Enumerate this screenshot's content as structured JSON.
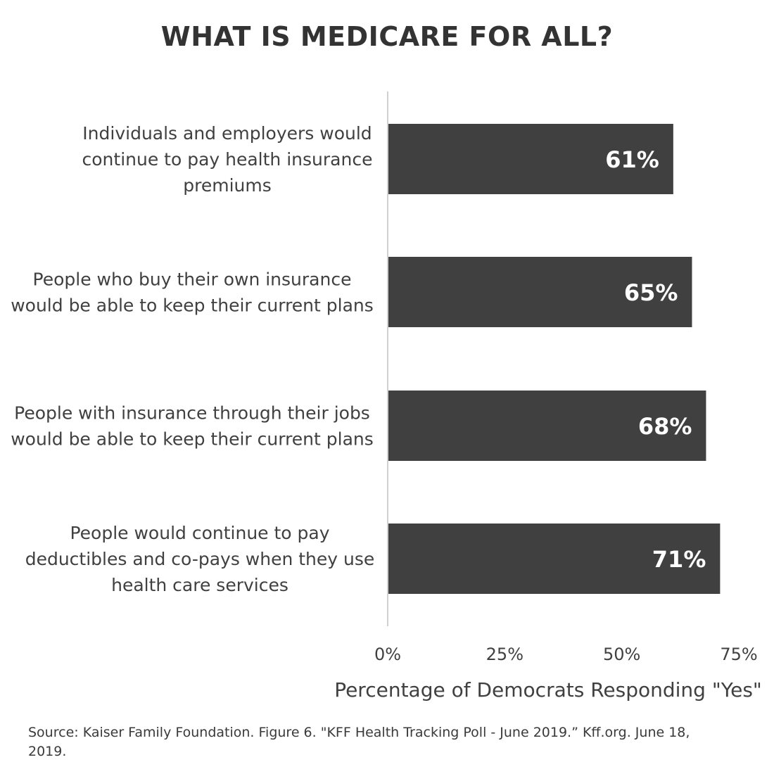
{
  "title": "WHAT IS MEDICARE FOR ALL?",
  "source": "Source: Kaiser Family Foundation. Figure 6. \"KFF Health Tracking Poll - June 2019.” Kff.org. June 18, 2019.",
  "chart_data": {
    "type": "bar",
    "orientation": "horizontal",
    "title": "WHAT IS MEDICARE FOR ALL?",
    "categories": [
      "Individuals and employers would continue to pay health insurance premiums",
      "People who buy their own insurance would be able to keep their current plans",
      "People with insurance through their jobs would be able to keep their current plans",
      "People would continue to pay deductibles and co-pays when they use health care services"
    ],
    "category_lines": [
      [
        "Individuals and employers would",
        "continue to pay health insurance",
        "premiums"
      ],
      [
        "People who buy their own insurance",
        "would be able to keep their current plans"
      ],
      [
        "People with insurance through their jobs",
        "would be able to keep their current plans"
      ],
      [
        "People would continue to pay",
        "deductibles and co-pays when they use",
        "health care services"
      ]
    ],
    "values": [
      61,
      65,
      68,
      71
    ],
    "data_labels": [
      "61%",
      "65%",
      "68%",
      "71%"
    ],
    "xlabel": "Percentage of Democrats Responding \"Yes\"",
    "ylabel": "",
    "xlim": [
      0,
      75
    ],
    "xticks": [
      0,
      25,
      50,
      75
    ],
    "xtick_labels": [
      "0%",
      "25%",
      "50%",
      "75%"
    ],
    "grid": false,
    "legend": "none",
    "colors": {
      "bar": "#404040",
      "bar_label": "#ffffff",
      "text": "#404040",
      "axis": "#d0d0d0"
    }
  }
}
